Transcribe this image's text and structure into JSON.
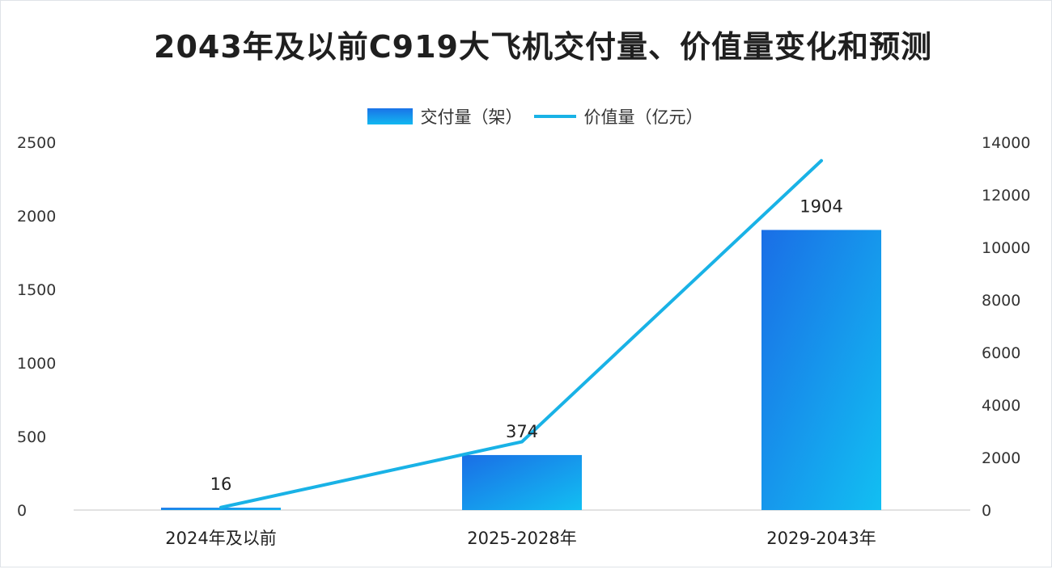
{
  "chart_data": {
    "type": "bar",
    "title": "2043年及以前C919大飞机交付量、价值量变化和预测",
    "categories": [
      "2024年及以前",
      "2025-2028年",
      "2029-2043年"
    ],
    "series": [
      {
        "name": "交付量（架）",
        "type": "bar",
        "axis": "left",
        "values": [
          16,
          374,
          1904
        ],
        "labels": [
          "16",
          "374",
          "1904"
        ],
        "color": "#1a73e8"
      },
      {
        "name": "价值量（亿元）",
        "type": "line",
        "axis": "right",
        "values": [
          100,
          2600,
          13300
        ],
        "color": "#19b2e6"
      }
    ],
    "y_left": {
      "min": 0,
      "max": 2500,
      "ticks": [
        "0",
        "500",
        "1000",
        "1500",
        "2000",
        "2500"
      ]
    },
    "y_right": {
      "min": 0,
      "max": 14000,
      "ticks": [
        "0",
        "2000",
        "4000",
        "6000",
        "8000",
        "10000",
        "12000",
        "14000"
      ]
    },
    "legend_position": "top-center",
    "grid": false,
    "colors": {
      "bar_top": "#1a73e8",
      "bar_bottom": "#12b8f0",
      "line": "#19b2e6"
    }
  }
}
